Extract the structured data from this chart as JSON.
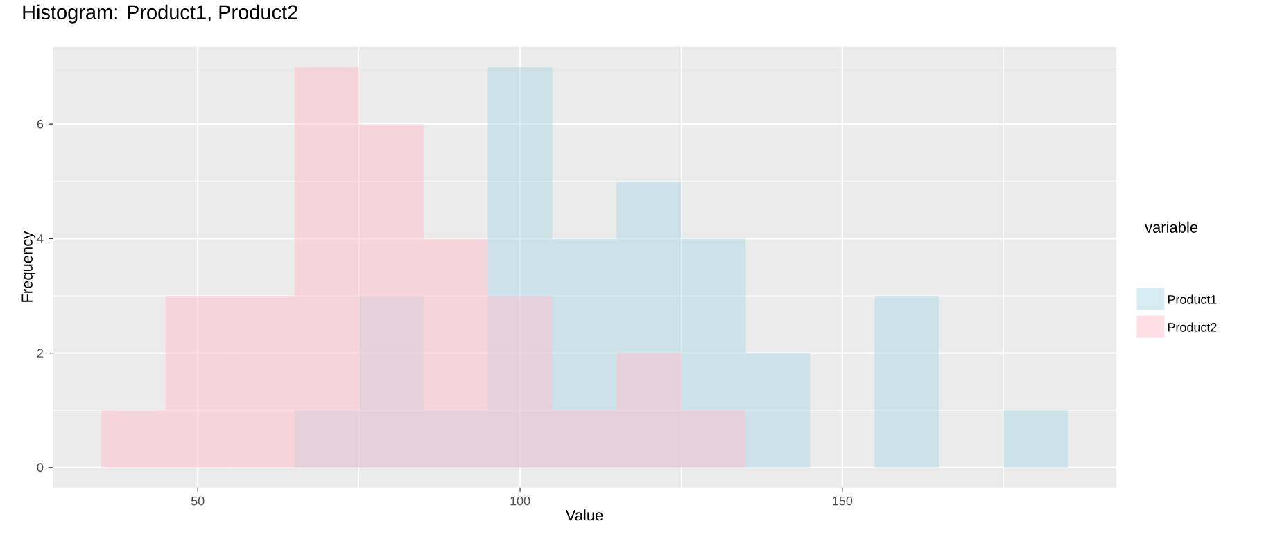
{
  "chart_data": {
    "type": "histogram",
    "title": "Histogram: Product1, Product2",
    "xlabel": "Value",
    "ylabel": "Frequency",
    "legend_title": "variable",
    "bins": [
      35,
      45,
      55,
      65,
      75,
      85,
      95,
      105,
      115,
      125,
      135,
      145,
      155,
      165,
      175,
      185
    ],
    "series": [
      {
        "name": "Product1",
        "color": "#add8e6",
        "values": [
          0,
          0,
          0,
          1,
          3,
          1,
          7,
          4,
          5,
          4,
          2,
          0,
          3,
          0,
          1
        ]
      },
      {
        "name": "Product2",
        "color": "#ffc0cb",
        "values": [
          1,
          3,
          3,
          7,
          6,
          4,
          3,
          1,
          2,
          1,
          0,
          0,
          0,
          0,
          0
        ]
      }
    ],
    "xlim": [
      27.5,
      192.5
    ],
    "ylim": [
      -0.35,
      7.35
    ],
    "xticks": [
      50,
      100,
      150
    ],
    "yticks": [
      0,
      2,
      4,
      6
    ],
    "grid": true,
    "legend": "right"
  }
}
